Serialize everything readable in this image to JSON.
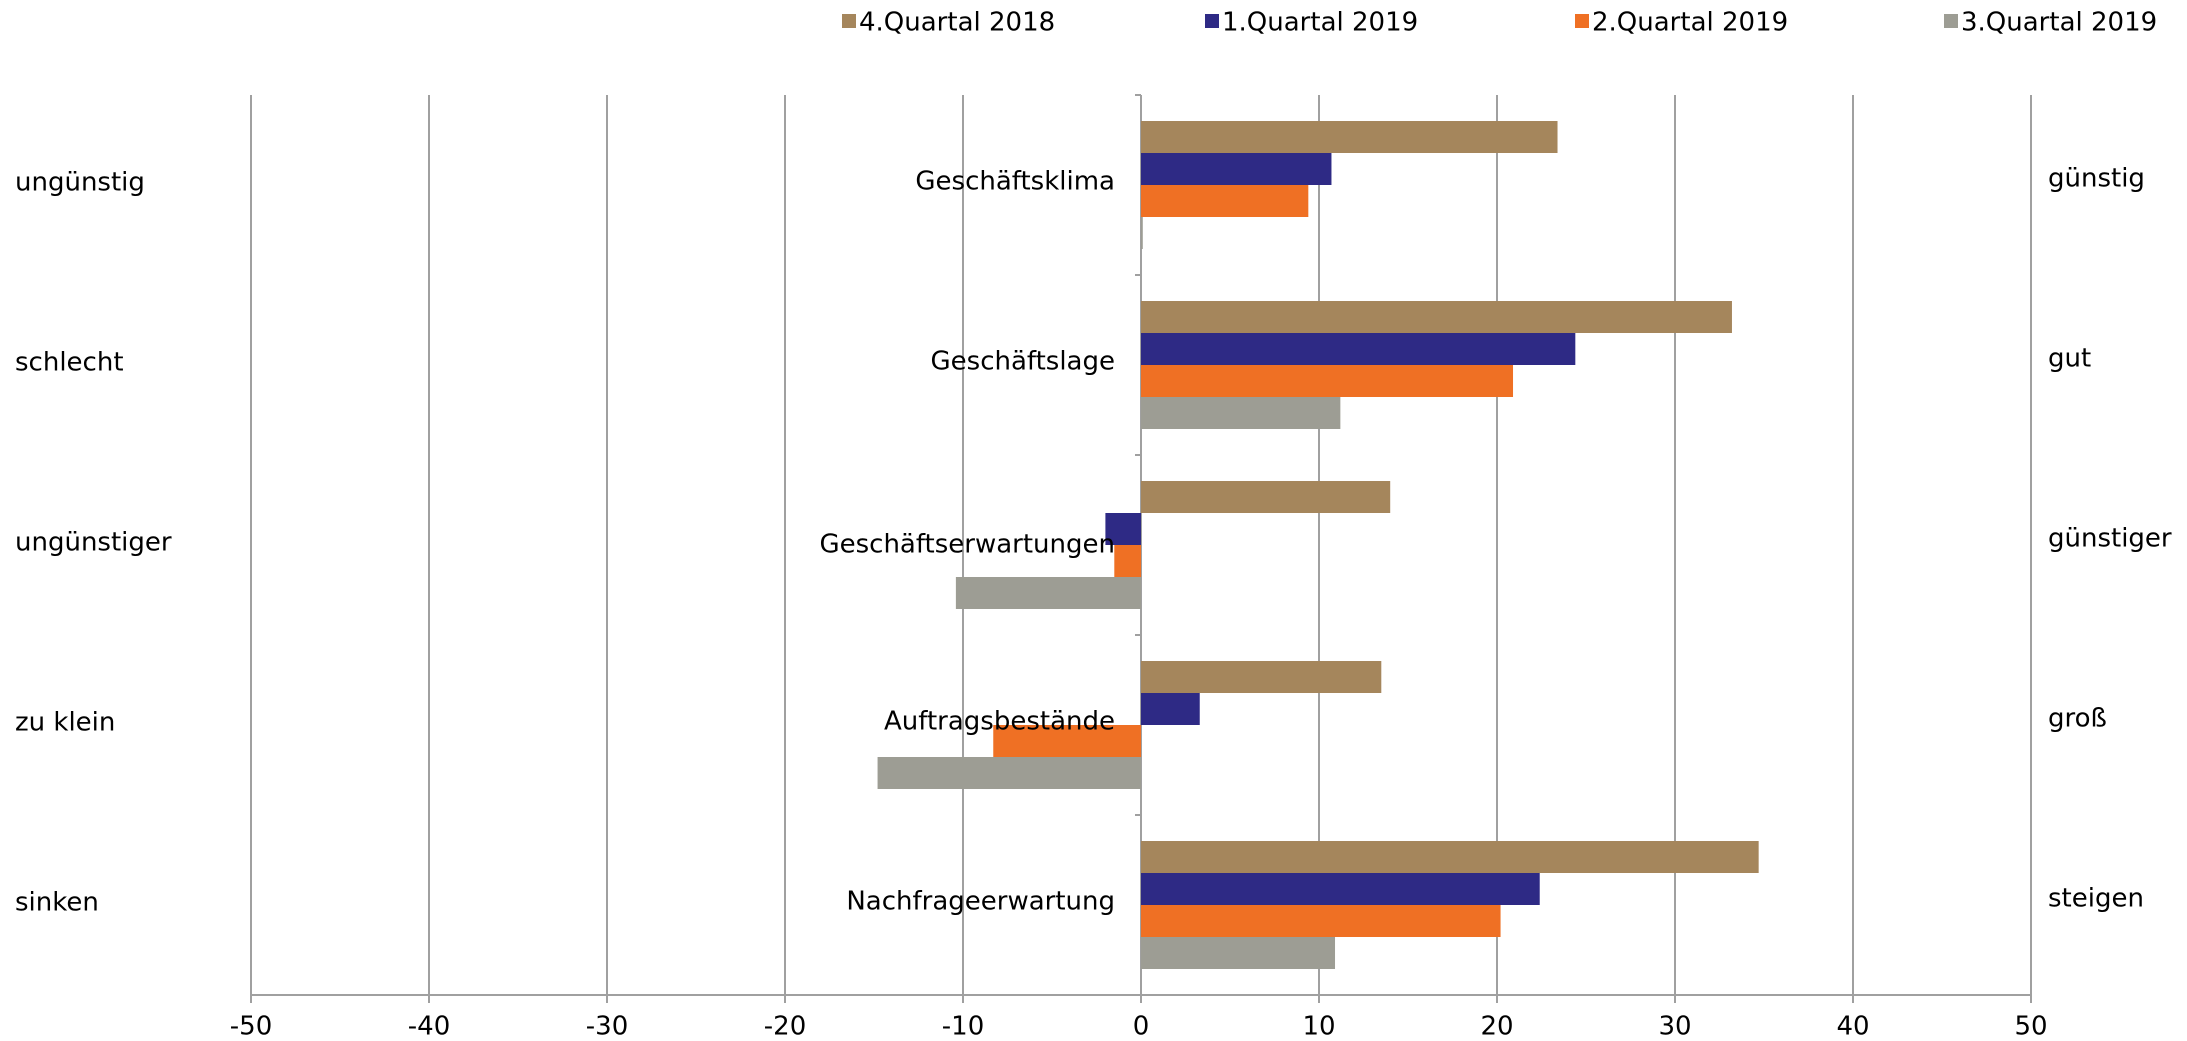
{
  "chart_data": {
    "type": "bar",
    "orientation": "horizontal",
    "categories": [
      "Geschäftsklima",
      "Geschäftslage",
      "Geschäftserwartungen",
      "Auftragsbestände",
      "Nachfrageerwartung"
    ],
    "left_labels": [
      "ungünstig",
      "schlecht",
      "ungünstiger",
      "zu klein",
      "sinken"
    ],
    "right_labels": [
      "günstig",
      "gut",
      "günstiger",
      "groß",
      "steigen"
    ],
    "series": [
      {
        "name": "4.Quartal 2018",
        "color": "#a5865c",
        "values": [
          23.4,
          33.2,
          14.0,
          13.5,
          34.7
        ]
      },
      {
        "name": "1.Quartal 2019",
        "color": "#2e2a85",
        "values": [
          10.7,
          24.4,
          -2.0,
          3.3,
          22.4
        ]
      },
      {
        "name": "2.Quartal 2019",
        "color": "#ef7024",
        "values": [
          9.4,
          20.9,
          -1.5,
          -8.3,
          20.2
        ]
      },
      {
        "name": "3.Quartal 2019",
        "color": "#9d9d94",
        "values": [
          0.1,
          11.2,
          -10.4,
          -14.8,
          10.9
        ]
      }
    ],
    "xlim": [
      -50,
      50
    ],
    "xticks": [
      -50,
      -40,
      -30,
      -20,
      -10,
      0,
      10,
      20,
      30,
      40,
      50
    ],
    "grid": true,
    "legend": "top"
  }
}
